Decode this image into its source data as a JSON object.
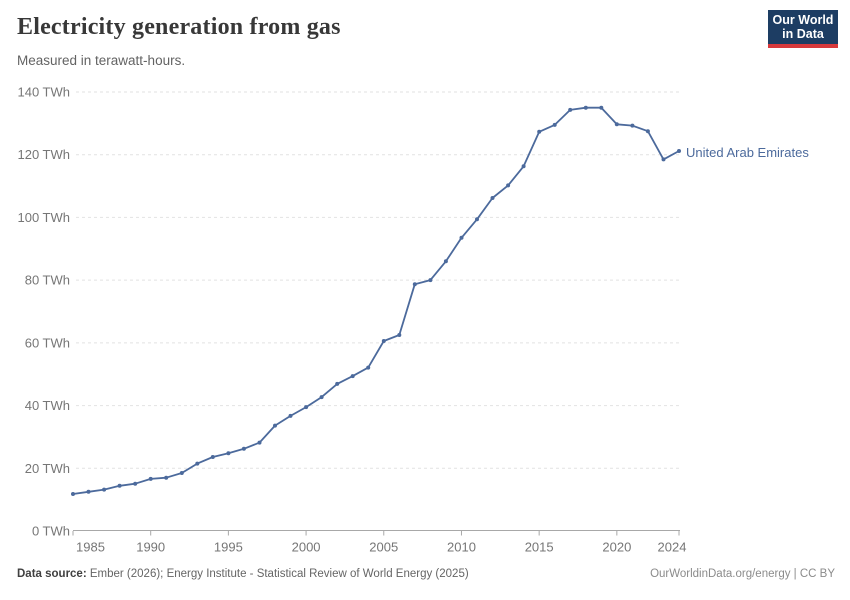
{
  "header": {
    "title": "Electricity generation from gas",
    "subtitle": "Measured in terawatt-hours."
  },
  "logo": {
    "line1": "Our World",
    "line2": "in Data",
    "bg_color": "#1d3d63",
    "accent_color": "#d7393c"
  },
  "chart_data": {
    "type": "line",
    "title": "Electricity generation from gas",
    "subtitle": "Measured in terawatt-hours.",
    "entity_label": "United Arab Emirates",
    "line_color": "#4C6A9C",
    "unit": "TWh",
    "x": [
      1985,
      1986,
      1987,
      1988,
      1989,
      1990,
      1991,
      1992,
      1993,
      1994,
      1995,
      1996,
      1997,
      1998,
      1999,
      2000,
      2001,
      2002,
      2003,
      2004,
      2005,
      2006,
      2007,
      2008,
      2009,
      2010,
      2011,
      2012,
      2013,
      2014,
      2015,
      2016,
      2017,
      2018,
      2019,
      2020,
      2021,
      2022,
      2023,
      2024
    ],
    "values": [
      11.8,
      12.5,
      13.2,
      14.4,
      15.1,
      16.6,
      17.0,
      18.5,
      21.5,
      23.6,
      24.8,
      26.2,
      28.2,
      33.6,
      36.7,
      39.5,
      42.7,
      46.9,
      49.4,
      52.1,
      60.6,
      62.5,
      78.7,
      80.0,
      86.0,
      93.5,
      99.4,
      106.2,
      110.2,
      116.3,
      127.3,
      129.5,
      134.3,
      135.0,
      135.0,
      129.7,
      129.3,
      127.5,
      118.5,
      121.2
    ],
    "xlim": [
      1985,
      2024
    ],
    "ylim": [
      0,
      140
    ],
    "yticks": [
      {
        "value": 0,
        "label": "0 TWh"
      },
      {
        "value": 20,
        "label": "20 TWh"
      },
      {
        "value": 40,
        "label": "40 TWh"
      },
      {
        "value": 60,
        "label": "60 TWh"
      },
      {
        "value": 80,
        "label": "80 TWh"
      },
      {
        "value": 100,
        "label": "100 TWh"
      },
      {
        "value": 120,
        "label": "120 TWh"
      },
      {
        "value": 140,
        "label": "140 TWh"
      }
    ],
    "xticks": [
      {
        "value": 1985,
        "label": "1985"
      },
      {
        "value": 1990,
        "label": "1990"
      },
      {
        "value": 1995,
        "label": "1995"
      },
      {
        "value": 2000,
        "label": "2000"
      },
      {
        "value": 2005,
        "label": "2005"
      },
      {
        "value": 2010,
        "label": "2010"
      },
      {
        "value": 2015,
        "label": "2015"
      },
      {
        "value": 2020,
        "label": "2020"
      },
      {
        "value": 2024,
        "label": "2024"
      }
    ],
    "grid": "horizontal-dashed",
    "legend_position": "end-of-line",
    "colors": {
      "grid": "#e2e2e2",
      "axis": "#a8a8a8",
      "tick_label": "#767676"
    }
  },
  "footer": {
    "source_label": "Data source:",
    "source_text": " Ember (2026); Energy Institute - Statistical Review of World Energy (2025)",
    "right_text": "OurWorldinData.org/energy | CC BY"
  }
}
